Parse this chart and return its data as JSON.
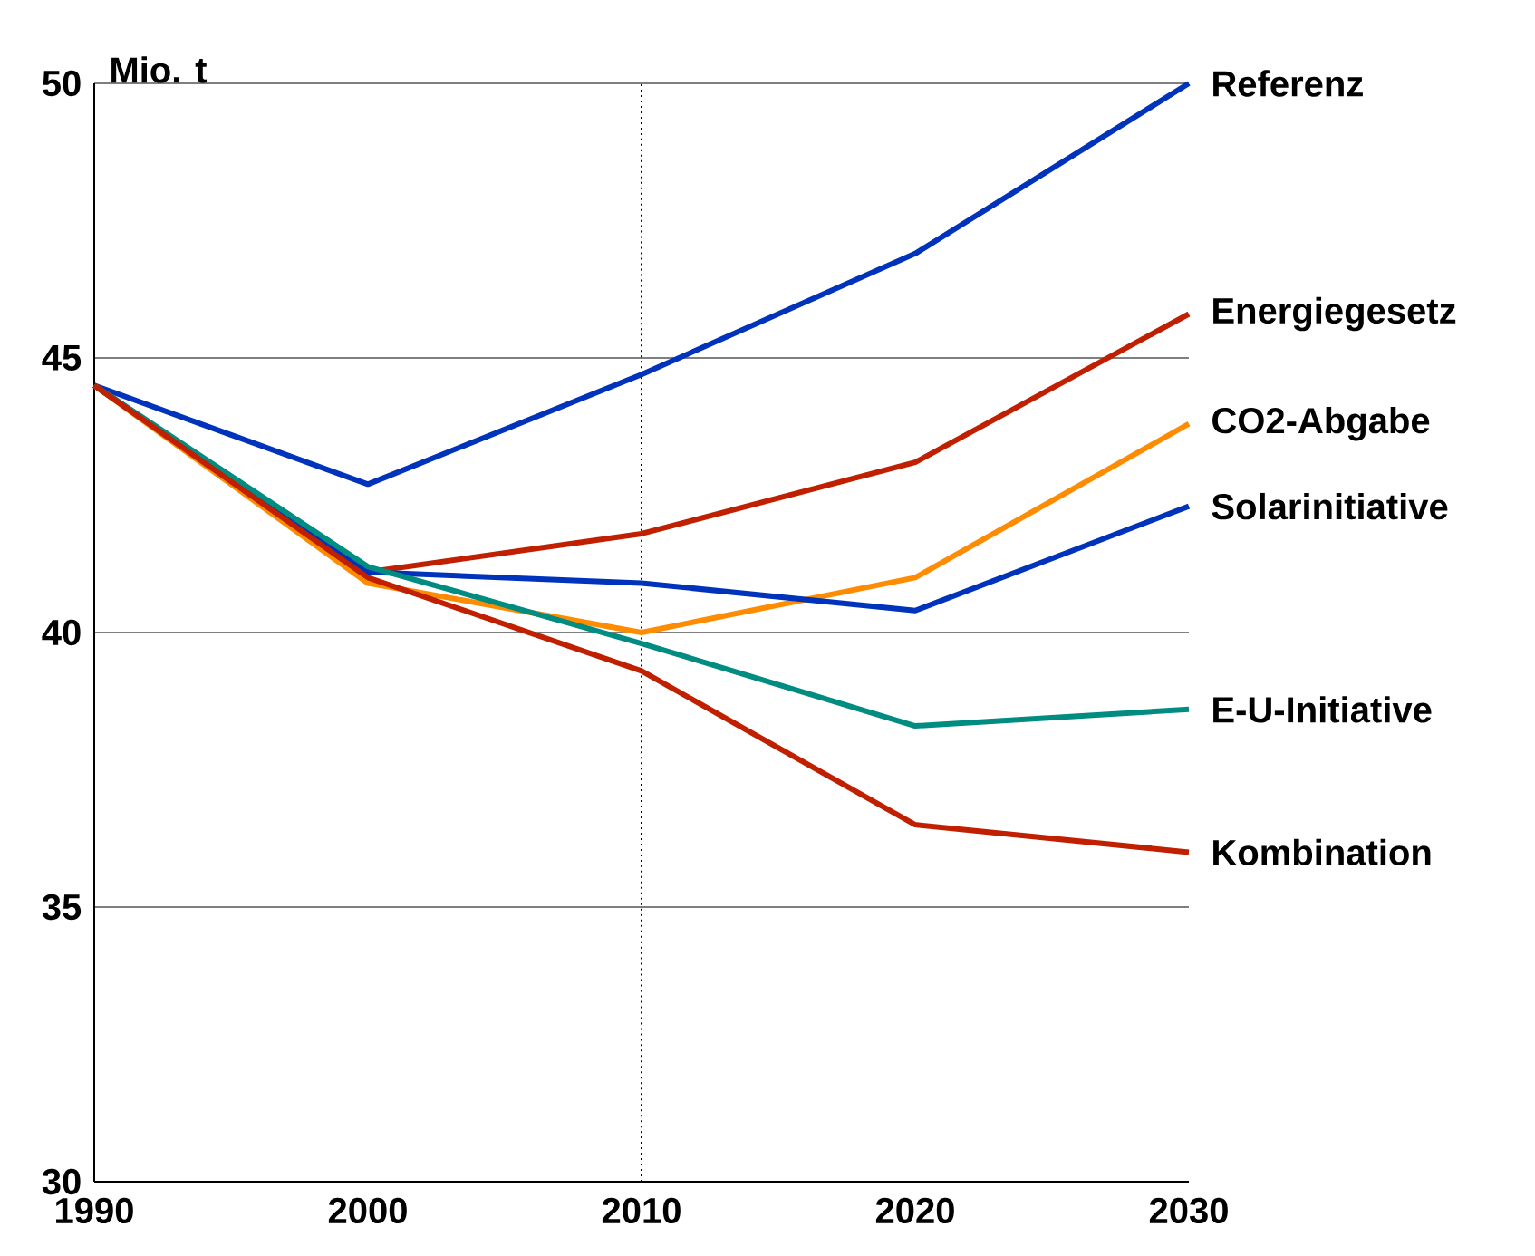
{
  "chart_data": {
    "type": "line",
    "ylabel": "Mio. t",
    "x": [
      1990,
      2000,
      2010,
      2020,
      2030
    ],
    "xlim": [
      1990,
      2030
    ],
    "ylim": [
      30,
      50
    ],
    "xticks": [
      1990,
      2000,
      2010,
      2020,
      2030
    ],
    "yticks": [
      30,
      35,
      40,
      45,
      50
    ],
    "grid": "y",
    "legend": false,
    "marker": "none",
    "line_style": "solid",
    "ref_lines": [
      {
        "axis": "x",
        "value": 2010,
        "line_style": "dotted",
        "color": "#000000"
      }
    ],
    "series": [
      {
        "name": "Referenz",
        "color": "#0033bb",
        "values": [
          44.5,
          42.7,
          44.7,
          46.9,
          50
        ]
      },
      {
        "name": "Energiegesetz",
        "color": "#c02000",
        "values": [
          44.5,
          41.1,
          41.8,
          43.1,
          45.8
        ]
      },
      {
        "name": "CO2-Abgabe",
        "color": "#ff8c00",
        "values": [
          44.5,
          40.9,
          40.0,
          41.0,
          43.8
        ]
      },
      {
        "name": "Solarinitiative",
        "color": "#0033bb",
        "values": [
          44.5,
          41.1,
          40.9,
          40.4,
          42.3
        ]
      },
      {
        "name": "E-U-Initiative",
        "color": "#008c80",
        "values": [
          44.5,
          41.2,
          39.8,
          38.3,
          38.6
        ]
      },
      {
        "name": "Kombination",
        "color": "#c02000",
        "values": [
          44.5,
          41.0,
          39.3,
          36.5,
          36.0
        ]
      }
    ]
  }
}
